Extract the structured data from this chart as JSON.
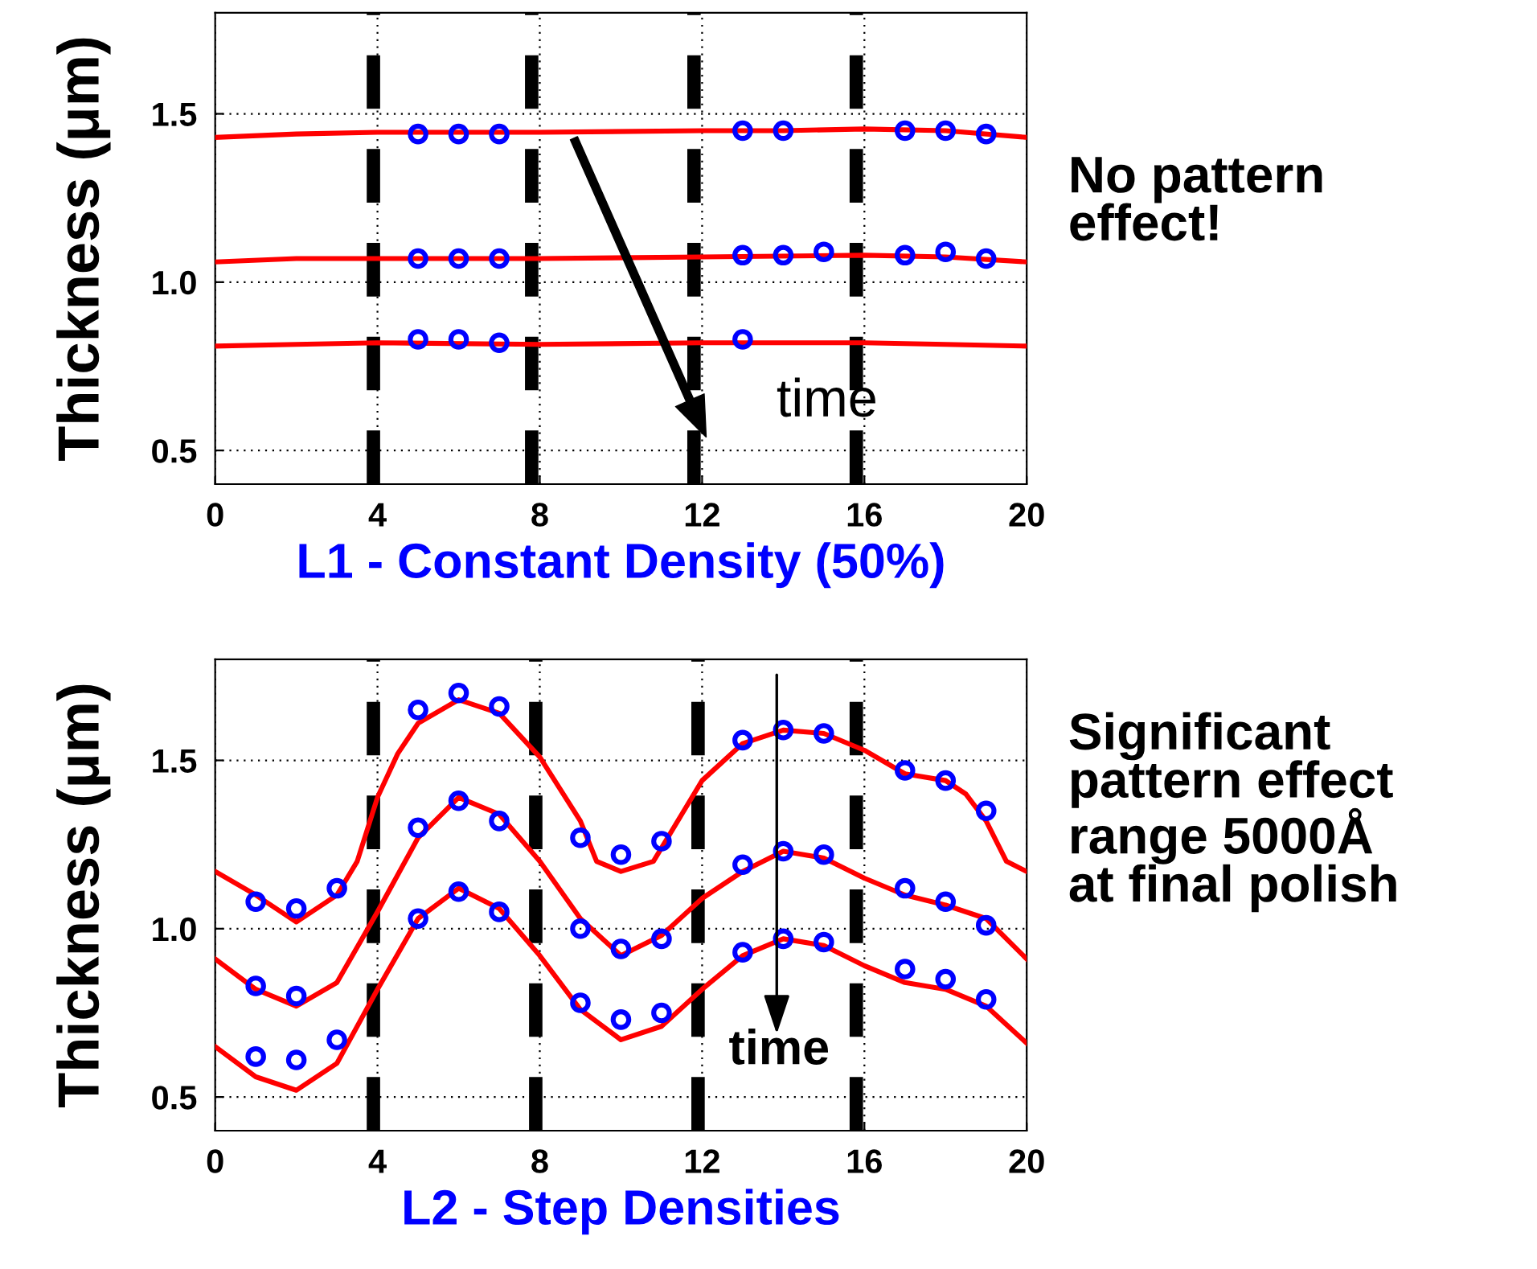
{
  "chart_data": [
    {
      "type": "line",
      "xlabel": "L1 - Constant Density (50%)",
      "ylabel": "Thickness (μm)",
      "xlim": [
        0,
        20
      ],
      "ylim": [
        0.4,
        1.8
      ],
      "xticks": [
        0,
        4,
        8,
        12,
        16,
        20
      ],
      "yticks": [
        {
          "value": 0.5,
          "label": "0.5"
        },
        {
          "value": 1.0,
          "label": "1.0"
        },
        {
          "value": 1.5,
          "label": "1.5"
        }
      ],
      "grid": true,
      "series": [
        {
          "color": "#ff0000",
          "x": [
            0,
            2,
            4,
            8,
            12,
            14,
            16,
            18,
            20
          ],
          "values": [
            1.43,
            1.44,
            1.445,
            1.445,
            1.45,
            1.45,
            1.455,
            1.45,
            1.43
          ]
        },
        {
          "color": "#ff0000",
          "x": [
            0,
            2,
            4,
            8,
            12,
            16,
            18,
            20
          ],
          "values": [
            1.06,
            1.07,
            1.07,
            1.07,
            1.075,
            1.08,
            1.075,
            1.06
          ]
        },
        {
          "color": "#ff0000",
          "x": [
            0,
            2,
            4,
            8,
            12,
            16,
            18,
            20
          ],
          "values": [
            0.81,
            0.815,
            0.82,
            0.815,
            0.82,
            0.82,
            0.815,
            0.81
          ]
        },
        {
          "type": "scatter",
          "marker": "circle",
          "color": "#0000ff",
          "x": [
            5,
            6,
            7,
            13,
            14,
            17,
            18,
            19
          ],
          "values": [
            1.44,
            1.44,
            1.44,
            1.45,
            1.45,
            1.45,
            1.45,
            1.44
          ]
        },
        {
          "type": "scatter",
          "marker": "circle",
          "color": "#0000ff",
          "x": [
            5,
            6,
            7,
            13,
            14,
            15,
            17,
            18,
            19
          ],
          "values": [
            1.07,
            1.07,
            1.07,
            1.08,
            1.08,
            1.09,
            1.08,
            1.09,
            1.07
          ]
        },
        {
          "type": "scatter",
          "marker": "circle",
          "color": "#0000ff",
          "x": [
            5,
            6,
            7,
            13
          ],
          "values": [
            0.83,
            0.83,
            0.82,
            0.83
          ]
        }
      ],
      "ref_lines": [
        {
          "axis": "x",
          "value": 3.9,
          "color": "#000000",
          "line_style": "dashed"
        },
        {
          "axis": "x",
          "value": 7.8,
          "color": "#000000",
          "line_style": "dashed"
        },
        {
          "axis": "x",
          "value": 11.8,
          "color": "#000000",
          "line_style": "dashed"
        },
        {
          "axis": "x",
          "value": 15.8,
          "color": "#000000",
          "line_style": "dashed"
        }
      ],
      "annotations": [
        "time",
        "No pattern\neffect!"
      ]
    },
    {
      "type": "line",
      "xlabel": "L2 - Step Densities",
      "ylabel": "Thickness (μm)",
      "xlim": [
        0,
        20
      ],
      "ylim": [
        0.4,
        1.8
      ],
      "xticks": [
        0,
        4,
        8,
        12,
        16,
        20
      ],
      "yticks": [
        {
          "value": 0.5,
          "label": "0.5"
        },
        {
          "value": 1.0,
          "label": "1.0"
        },
        {
          "value": 1.5,
          "label": "1.5"
        }
      ],
      "grid": true,
      "series": [
        {
          "color": "#ff0000",
          "x": [
            0,
            1,
            2,
            3,
            3.5,
            4,
            4.5,
            5,
            6,
            7,
            8,
            9,
            9.4,
            10,
            10.8,
            11.5,
            12,
            13,
            14,
            15,
            16,
            17,
            18,
            18.5,
            19,
            19.5,
            20
          ],
          "values": [
            1.17,
            1.1,
            1.02,
            1.1,
            1.2,
            1.39,
            1.52,
            1.61,
            1.68,
            1.64,
            1.51,
            1.32,
            1.2,
            1.17,
            1.2,
            1.34,
            1.44,
            1.55,
            1.59,
            1.58,
            1.53,
            1.46,
            1.44,
            1.4,
            1.32,
            1.2,
            1.17
          ]
        },
        {
          "color": "#ff0000",
          "x": [
            0,
            1,
            2,
            3,
            4,
            5,
            6,
            7,
            8,
            9,
            10,
            11,
            12,
            13,
            14,
            15,
            16,
            17,
            18,
            19,
            20
          ],
          "values": [
            0.91,
            0.82,
            0.77,
            0.84,
            1.05,
            1.27,
            1.39,
            1.34,
            1.2,
            1.03,
            0.92,
            0.98,
            1.09,
            1.17,
            1.23,
            1.21,
            1.15,
            1.1,
            1.07,
            1.03,
            0.91
          ]
        },
        {
          "color": "#ff0000",
          "x": [
            0,
            1,
            2,
            3,
            4,
            5,
            6,
            7,
            8,
            9,
            10,
            11,
            12,
            13,
            14,
            15,
            16,
            17,
            18,
            19,
            20
          ],
          "values": [
            0.65,
            0.56,
            0.52,
            0.6,
            0.82,
            1.03,
            1.12,
            1.06,
            0.92,
            0.76,
            0.67,
            0.71,
            0.82,
            0.92,
            0.97,
            0.95,
            0.89,
            0.84,
            0.82,
            0.77,
            0.66
          ]
        },
        {
          "type": "scatter",
          "marker": "circle",
          "color": "#0000ff",
          "x": [
            1,
            2,
            3,
            5,
            6,
            7,
            9,
            10,
            11,
            13,
            14,
            15,
            17,
            18,
            19
          ],
          "values": [
            1.08,
            1.06,
            1.12,
            1.65,
            1.7,
            1.66,
            1.27,
            1.22,
            1.26,
            1.56,
            1.59,
            1.58,
            1.47,
            1.44,
            1.35
          ]
        },
        {
          "type": "scatter",
          "marker": "circle",
          "color": "#0000ff",
          "x": [
            1,
            2,
            5,
            6,
            7,
            9,
            10,
            11,
            13,
            14,
            15,
            17,
            18,
            19
          ],
          "values": [
            0.83,
            0.8,
            1.3,
            1.38,
            1.32,
            1.0,
            0.94,
            0.97,
            1.19,
            1.23,
            1.22,
            1.12,
            1.08,
            1.01
          ]
        },
        {
          "type": "scatter",
          "marker": "circle",
          "color": "#0000ff",
          "x": [
            1,
            2,
            3,
            5,
            6,
            7,
            9,
            10,
            11,
            13,
            14,
            15,
            17,
            18,
            19
          ],
          "values": [
            0.62,
            0.61,
            0.67,
            1.03,
            1.11,
            1.05,
            0.78,
            0.73,
            0.75,
            0.93,
            0.97,
            0.96,
            0.88,
            0.85,
            0.79
          ]
        }
      ],
      "ref_lines": [
        {
          "axis": "x",
          "value": 3.9,
          "color": "#000000",
          "line_style": "dashed"
        },
        {
          "axis": "x",
          "value": 7.9,
          "color": "#000000",
          "line_style": "dashed"
        },
        {
          "axis": "x",
          "value": 11.9,
          "color": "#000000",
          "line_style": "dashed"
        },
        {
          "axis": "x",
          "value": 15.8,
          "color": "#000000",
          "line_style": "dashed"
        }
      ],
      "annotations": [
        "time",
        "Significant\npattern effect\nrange 5000Å\nat final polish"
      ]
    }
  ]
}
